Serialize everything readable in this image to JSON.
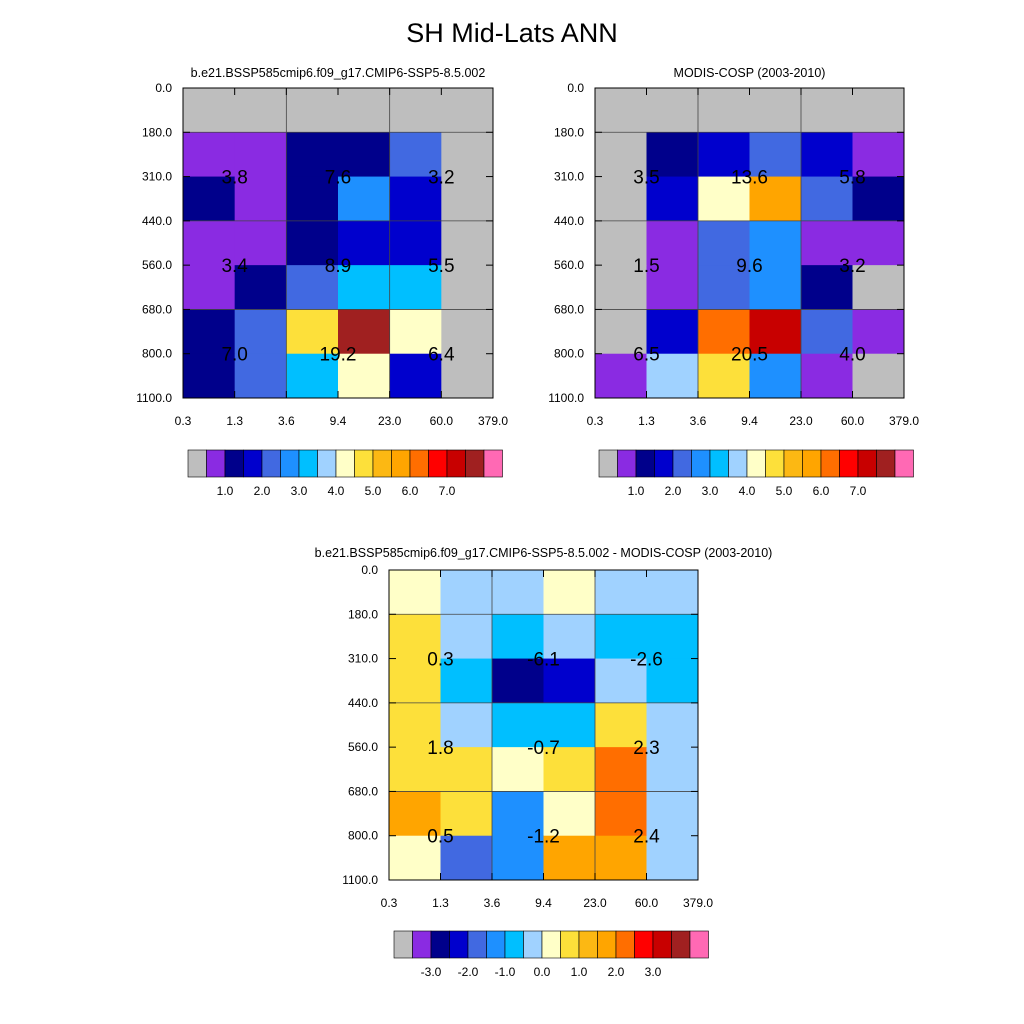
{
  "title": "SH Mid-Lats ANN",
  "colors": {
    "missing": "#bebebe",
    "abs_palette": [
      "#bebebe",
      "#8a2be2",
      "#00008b",
      "#0000cd",
      "#4169e1",
      "#1e90ff",
      "#00bfff",
      "#a0d2ff",
      "#ffffc8",
      "#fde03a",
      "#fcb813",
      "#ffa500",
      "#ff6e00",
      "#ff0000",
      "#c80000",
      "#a02020",
      "#ff69b4"
    ],
    "diff_palette": [
      "#bebebe",
      "#8a2be2",
      "#00008b",
      "#0000cd",
      "#4169e1",
      "#1e90ff",
      "#00bfff",
      "#a0d2ff",
      "#ffffc8",
      "#fde03a",
      "#fcb813",
      "#ffa500",
      "#ff6e00",
      "#ff0000",
      "#c80000",
      "#a02020",
      "#ff69b4"
    ]
  },
  "chart_data": [
    {
      "type": "heatmap",
      "title": "b.e21.BSSP585cmip6.f09_g17.CMIP6-SSP5-8.5.002",
      "x_ticks": [
        "0.3",
        "1.3",
        "3.6",
        "9.4",
        "23.0",
        "60.0",
        "379.0"
      ],
      "y_ticks": [
        "0.0",
        "180.0",
        "310.0",
        "440.0",
        "560.0",
        "680.0",
        "800.0",
        "1100.0"
      ],
      "cell_color_index": [
        [
          0,
          0,
          0,
          0,
          0,
          0
        ],
        [
          1,
          1,
          2,
          2,
          4,
          0
        ],
        [
          2,
          1,
          2,
          5,
          3,
          0
        ],
        [
          1,
          1,
          2,
          3,
          3,
          0
        ],
        [
          1,
          2,
          4,
          6,
          6,
          0
        ],
        [
          2,
          4,
          9,
          15,
          8,
          0
        ],
        [
          2,
          4,
          6,
          8,
          3,
          0
        ]
      ],
      "block_values": [
        [
          "3.8",
          "7.6",
          "3.2"
        ],
        [
          "3.4",
          "8.9",
          "5.5"
        ],
        [
          "7.0",
          "19.2",
          "6.4"
        ]
      ],
      "colorbar_labels": [
        "1.0",
        "2.0",
        "3.0",
        "4.0",
        "5.0",
        "6.0",
        "7.0"
      ]
    },
    {
      "type": "heatmap",
      "title": "MODIS-COSP (2003-2010)",
      "x_ticks": [
        "0.3",
        "1.3",
        "3.6",
        "9.4",
        "23.0",
        "60.0",
        "379.0"
      ],
      "y_ticks": [
        "0.0",
        "180.0",
        "310.0",
        "440.0",
        "560.0",
        "680.0",
        "800.0",
        "1100.0"
      ],
      "cell_color_index": [
        [
          0,
          0,
          0,
          0,
          0,
          0
        ],
        [
          0,
          2,
          3,
          4,
          3,
          1
        ],
        [
          0,
          3,
          8,
          11,
          4,
          2
        ],
        [
          0,
          1,
          4,
          5,
          1,
          1
        ],
        [
          0,
          1,
          4,
          5,
          2,
          0
        ],
        [
          0,
          3,
          12,
          14,
          4,
          1
        ],
        [
          1,
          7,
          9,
          5,
          1,
          0
        ]
      ],
      "block_values": [
        [
          "3.5",
          "13.6",
          "5.8"
        ],
        [
          "1.5",
          "9.6",
          "3.2"
        ],
        [
          "6.5",
          "20.5",
          "4.0"
        ]
      ],
      "colorbar_labels": [
        "1.0",
        "2.0",
        "3.0",
        "4.0",
        "5.0",
        "6.0",
        "7.0"
      ]
    },
    {
      "type": "heatmap",
      "title": "b.e21.BSSP585cmip6.f09_g17.CMIP6-SSP5-8.5.002 - MODIS-COSP (2003-2010)",
      "x_ticks": [
        "0.3",
        "1.3",
        "3.6",
        "9.4",
        "23.0",
        "60.0",
        "379.0"
      ],
      "y_ticks": [
        "0.0",
        "180.0",
        "310.0",
        "440.0",
        "560.0",
        "680.0",
        "800.0",
        "1100.0"
      ],
      "cell_color_index": [
        [
          8,
          7,
          7,
          8,
          7,
          7
        ],
        [
          9,
          7,
          6,
          7,
          6,
          6
        ],
        [
          9,
          6,
          2,
          3,
          7,
          6
        ],
        [
          9,
          7,
          6,
          6,
          9,
          7
        ],
        [
          9,
          9,
          8,
          9,
          12,
          7
        ],
        [
          11,
          9,
          5,
          8,
          12,
          7
        ],
        [
          8,
          4,
          5,
          11,
          11,
          7
        ]
      ],
      "block_values": [
        [
          "0.3",
          "-6.1",
          "-2.6"
        ],
        [
          "1.8",
          "-0.7",
          "2.3"
        ],
        [
          "0.5",
          "-1.2",
          "2.4"
        ]
      ],
      "colorbar_labels": [
        "-3.0",
        "-2.0",
        "-1.0",
        "0.0",
        "1.0",
        "2.0",
        "3.0"
      ]
    }
  ]
}
